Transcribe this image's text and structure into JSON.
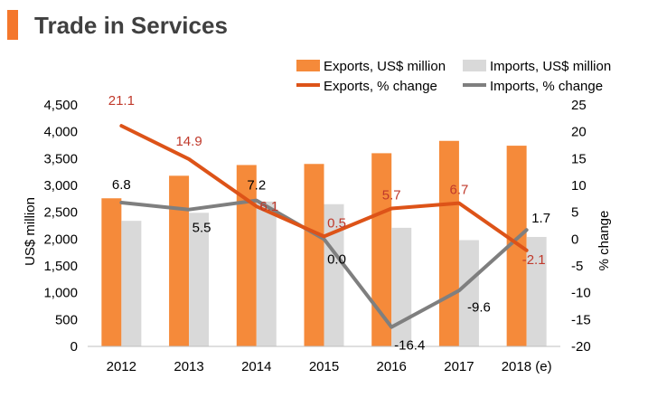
{
  "title": "Trade in Services",
  "colors": {
    "accent": "#F4772C",
    "exports_bar": "#F58A3A",
    "imports_bar": "#D9D9D9",
    "exports_line": "#DD5318",
    "imports_line": "#7F7F7F",
    "exports_label": "#C0392B",
    "imports_label": "#000000",
    "axis": "#BFBFBF"
  },
  "chart_data": {
    "type": "bar",
    "title": "Trade in Services",
    "categories": [
      "2012",
      "2013",
      "2014",
      "2015",
      "2016",
      "2017",
      "2018 (e)"
    ],
    "ylabel": "US$ million",
    "y2label": "% change",
    "ylim": [
      0,
      4500
    ],
    "yticks": [
      "0",
      "500",
      "1,000",
      "1,500",
      "2,000",
      "2,500",
      "3,000",
      "3,500",
      "4,000",
      "4,500"
    ],
    "y2lim": [
      -20,
      25
    ],
    "y2ticks": [
      "-20",
      "-15",
      "-10",
      "-5",
      "0",
      "5",
      "10",
      "15",
      "20",
      "25"
    ],
    "legend_position": "top-right",
    "series": [
      {
        "name": "Exports, US$ million",
        "type": "bar",
        "axis": "left",
        "values": [
          2760,
          3180,
          3380,
          3400,
          3600,
          3830,
          3740
        ]
      },
      {
        "name": "Imports, US$ million",
        "type": "bar",
        "axis": "left",
        "values": [
          2340,
          2490,
          2700,
          2650,
          2210,
          1980,
          2040
        ]
      },
      {
        "name": "Exports, % change",
        "type": "line",
        "axis": "right",
        "values": [
          21.1,
          14.9,
          6.1,
          0.5,
          5.7,
          6.7,
          -2.1
        ],
        "labels": [
          "21.1",
          "14.9",
          "6.1",
          "0.5",
          "5.7",
          "6.7",
          "-2.1"
        ]
      },
      {
        "name": "Imports, % change",
        "type": "line",
        "axis": "right",
        "values": [
          6.8,
          5.5,
          7.2,
          0.0,
          -16.4,
          -9.6,
          1.7
        ],
        "labels": [
          "6.8",
          "5.5",
          "7.2",
          "0.0",
          "-16.4",
          "-9.6",
          "1.7"
        ]
      }
    ]
  }
}
